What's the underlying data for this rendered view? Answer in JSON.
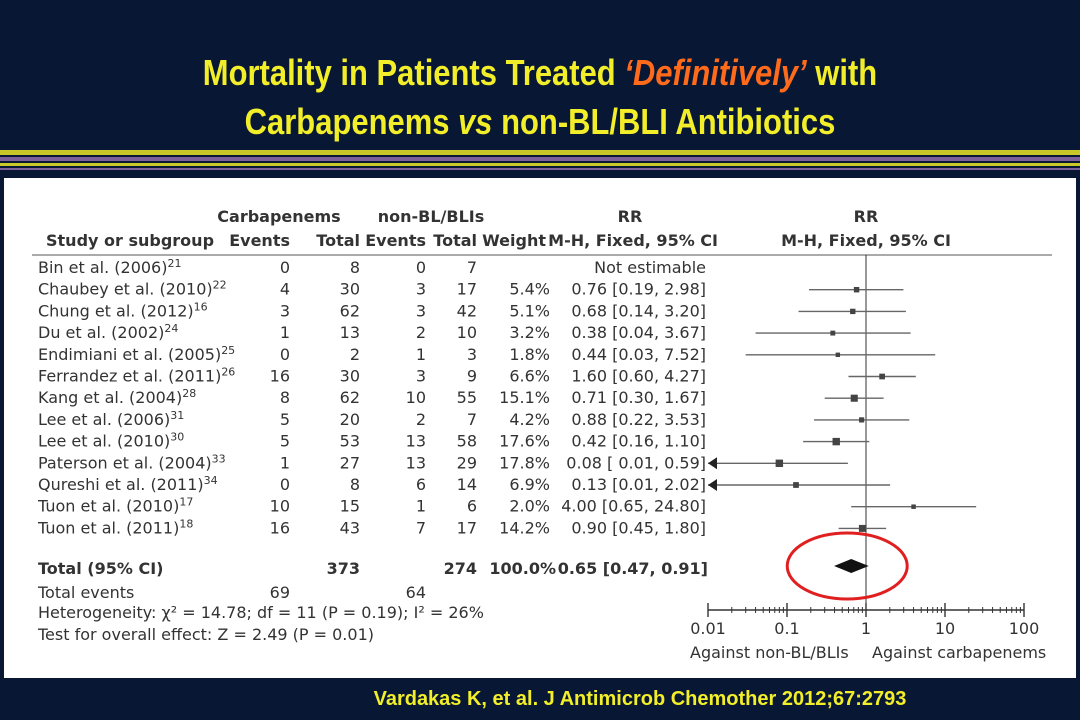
{
  "title": {
    "line1_prefix": "Mortality in Patients Treated ",
    "line1_emphasis": "‘Definitively’",
    "line1_suffix": " with",
    "line2_part1": "Carbapenems ",
    "line2_vs": "vs",
    "line2_part2": " non-BL/BLI Antibiotics"
  },
  "colors": {
    "background": "#081734",
    "title": "#f2ee29",
    "emphasis": "#ff6b1a",
    "stripe_yellow": "#c9c82a",
    "stripe_purple": "#7d5f9a",
    "highlight_circle": "#e02020"
  },
  "table": {
    "group_headers": {
      "carbapenems": "Carbapenems",
      "non_bl": "non-BL/BLIs",
      "rr": "RR",
      "rr_plot": "RR"
    },
    "headers": {
      "study": "Study or subgroup",
      "c_events": "Events",
      "c_total": "Total",
      "n_events": "Events",
      "n_total": "Total",
      "weight": "Weight",
      "rr": "M-H, Fixed, 95% CI",
      "rr_plot": "M-H, Fixed, 95% CI"
    },
    "rows": [
      {
        "study": "Bin et al. (2006)",
        "ref": "21",
        "c_events": "0",
        "c_total": "8",
        "n_events": "0",
        "n_total": "7",
        "weight": "",
        "rr": "Not estimable"
      },
      {
        "study": "Chaubey et al. (2010)",
        "ref": "22",
        "c_events": "4",
        "c_total": "30",
        "n_events": "3",
        "n_total": "17",
        "weight": "5.4%",
        "rr": "0.76 [0.19, 2.98]"
      },
      {
        "study": "Chung et al. (2012)",
        "ref": "16",
        "c_events": "3",
        "c_total": "62",
        "n_events": "3",
        "n_total": "42",
        "weight": "5.1%",
        "rr": "0.68 [0.14, 3.20]"
      },
      {
        "study": "Du et al. (2002)",
        "ref": "24",
        "c_events": "1",
        "c_total": "13",
        "n_events": "2",
        "n_total": "10",
        "weight": "3.2%",
        "rr": "0.38 [0.04, 3.67]"
      },
      {
        "study": "Endimiani et al. (2005)",
        "ref": "25",
        "c_events": "0",
        "c_total": "2",
        "n_events": "1",
        "n_total": "3",
        "weight": "1.8%",
        "rr": "0.44 [0.03, 7.52]"
      },
      {
        "study": "Ferrandez et al. (2011)",
        "ref": "26",
        "c_events": "16",
        "c_total": "30",
        "n_events": "3",
        "n_total": "9",
        "weight": "6.6%",
        "rr": "1.60 [0.60, 4.27]"
      },
      {
        "study": "Kang et al. (2004)",
        "ref": "28",
        "c_events": "8",
        "c_total": "62",
        "n_events": "10",
        "n_total": "55",
        "weight": "15.1%",
        "rr": "0.71 [0.30, 1.67]"
      },
      {
        "study": "Lee et al. (2006)",
        "ref": "31",
        "c_events": "5",
        "c_total": "20",
        "n_events": "2",
        "n_total": "7",
        "weight": "4.2%",
        "rr": "0.88 [0.22, 3.53]"
      },
      {
        "study": "Lee et al. (2010)",
        "ref": "30",
        "c_events": "5",
        "c_total": "53",
        "n_events": "13",
        "n_total": "58",
        "weight": "17.6%",
        "rr": "0.42 [0.16, 1.10]"
      },
      {
        "study": "Paterson et al. (2004)",
        "ref": "33",
        "c_events": "1",
        "c_total": "27",
        "n_events": "13",
        "n_total": "29",
        "weight": "17.8%",
        "rr": "0.08 [ 0.01, 0.59]"
      },
      {
        "study": "Qureshi et al. (2011)",
        "ref": "34",
        "c_events": "0",
        "c_total": "8",
        "n_events": "6",
        "n_total": "14",
        "weight": "6.9%",
        "rr": "0.13 [0.01, 2.02]"
      },
      {
        "study": "Tuon et al. (2010)",
        "ref": "17",
        "c_events": "10",
        "c_total": "15",
        "n_events": "1",
        "n_total": "6",
        "weight": "2.0%",
        "rr": "4.00 [0.65, 24.80]"
      },
      {
        "study": "Tuon et al. (2011)",
        "ref": "18",
        "c_events": "16",
        "c_total": "43",
        "n_events": "7",
        "n_total": "17",
        "weight": "14.2%",
        "rr": "0.90 [0.45, 1.80]"
      }
    ],
    "total_row": {
      "label": "Total (95% CI)",
      "c_total": "373",
      "n_total": "274",
      "weight": "100.0%",
      "rr": "0.65 [0.47, 0.91]"
    },
    "total_events": {
      "label": "Total events",
      "c_events": "69",
      "n_events": "64"
    },
    "heterogeneity": "Heterogeneity: χ² = 14.78; df = 11 (P = 0.19); I² = 26%",
    "overall_effect": "Test for overall effect: Z = 2.49 (P = 0.01)"
  },
  "chart_data": {
    "type": "forest",
    "x_scale": "log",
    "xlim": [
      0.01,
      100
    ],
    "x_ticks": [
      "0.01",
      "0.1",
      "1",
      "10",
      "100"
    ],
    "null_line": 1,
    "axis_left_label": "Against non-BL/BLIs",
    "axis_right_label": "Against carbapenems",
    "studies": [
      {
        "study": "Bin et al. (2006)",
        "rr": null,
        "lo": null,
        "hi": null,
        "weight": 0
      },
      {
        "study": "Chaubey et al. (2010)",
        "rr": 0.76,
        "lo": 0.19,
        "hi": 2.98,
        "weight": 5.4
      },
      {
        "study": "Chung et al. (2012)",
        "rr": 0.68,
        "lo": 0.14,
        "hi": 3.2,
        "weight": 5.1
      },
      {
        "study": "Du et al. (2002)",
        "rr": 0.38,
        "lo": 0.04,
        "hi": 3.67,
        "weight": 3.2
      },
      {
        "study": "Endimiani et al. (2005)",
        "rr": 0.44,
        "lo": 0.03,
        "hi": 7.52,
        "weight": 1.8
      },
      {
        "study": "Ferrandez et al. (2011)",
        "rr": 1.6,
        "lo": 0.6,
        "hi": 4.27,
        "weight": 6.6
      },
      {
        "study": "Kang et al. (2004)",
        "rr": 0.71,
        "lo": 0.3,
        "hi": 1.67,
        "weight": 15.1
      },
      {
        "study": "Lee et al. (2006)",
        "rr": 0.88,
        "lo": 0.22,
        "hi": 3.53,
        "weight": 4.2
      },
      {
        "study": "Lee et al. (2010)",
        "rr": 0.42,
        "lo": 0.16,
        "hi": 1.1,
        "weight": 17.6
      },
      {
        "study": "Paterson et al. (2004)",
        "rr": 0.08,
        "lo": 0.01,
        "hi": 0.59,
        "weight": 17.8
      },
      {
        "study": "Qureshi et al. (2011)",
        "rr": 0.13,
        "lo": 0.01,
        "hi": 2.02,
        "weight": 6.9
      },
      {
        "study": "Tuon et al. (2010)",
        "rr": 4.0,
        "lo": 0.65,
        "hi": 24.8,
        "weight": 2.0
      },
      {
        "study": "Tuon et al. (2011)",
        "rr": 0.9,
        "lo": 0.45,
        "hi": 1.8,
        "weight": 14.2
      }
    ],
    "pooled": {
      "rr": 0.65,
      "lo": 0.47,
      "hi": 0.91,
      "highlighted": true
    }
  },
  "citation": "Vardakas K, et al. J Antimicrob Chemother 2012;67:2793"
}
